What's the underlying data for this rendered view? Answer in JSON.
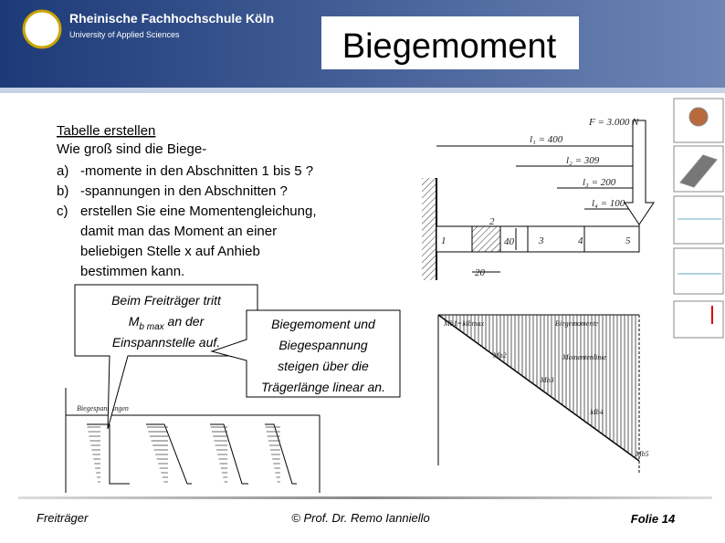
{
  "header": {
    "institution": "Rheinische Fachhochschule Köln",
    "subtitle": "University of Applied Sciences",
    "title": "Biegemoment"
  },
  "content": {
    "heading": "Tabelle erstellen",
    "intro": "Wie groß sind die Biege-",
    "items": [
      {
        "marker": "a)",
        "lines": [
          "-momente in den Abschnitten 1 bis 5 ?"
        ]
      },
      {
        "marker": "b)",
        "lines": [
          "-spannungen in den Abschnitten ?"
        ]
      },
      {
        "marker": "c)",
        "lines": [
          "erstellen Sie eine Momentengleichung,",
          "damit man das Moment an einer",
          "beliebigen Stelle x auf Anhieb",
          "bestimmen kann."
        ]
      }
    ]
  },
  "callouts": [
    {
      "lines": [
        "Beim Freiträger tritt"
      ],
      "symbol": "M",
      "subscript": "b max",
      "after": " an der",
      "last": "Einspannstelle auf."
    },
    {
      "lines": [
        "Biegemoment und",
        "Biegespannung",
        "steigen über die",
        "Trägerlänge linear an."
      ]
    }
  ],
  "beam": {
    "force": "F = 3.000 N",
    "dims": [
      "l₁ = 400",
      "l₂ = 309",
      "l₃ = 200",
      "l₄ = 100"
    ],
    "sections": [
      "1",
      "2",
      "3",
      "4",
      "5"
    ],
    "height": "40",
    "width": "20"
  },
  "moment_diagram": {
    "labels": [
      "Mb1=Mbmax",
      "Biegemomente",
      "Momentenlinie",
      "Mb2",
      "Mb3",
      "Mb4",
      "Mb5"
    ]
  },
  "stress_diagram": {
    "label": "Biegespannungen"
  },
  "footer": {
    "left": "Freiträger",
    "center": "© Prof. Dr. Remo Ianniello",
    "right": "Folie 14"
  }
}
